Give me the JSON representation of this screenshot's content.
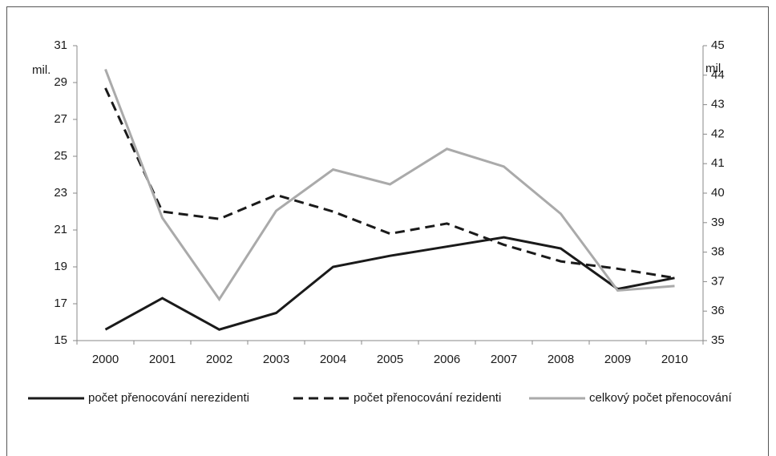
{
  "chart_data": {
    "type": "line",
    "y_label": "mil.",
    "y2_label": "mil.",
    "categories": [
      "2000",
      "2001",
      "2002",
      "2003",
      "2004",
      "2005",
      "2006",
      "2007",
      "2008",
      "2009",
      "2010"
    ],
    "series": [
      {
        "name": "počet přenocování nerezidenti",
        "color": "#1a1a1a",
        "dash": "solid",
        "axis": "y",
        "values": [
          15.6,
          17.3,
          15.6,
          16.5,
          19.0,
          19.6,
          20.1,
          20.6,
          20.0,
          17.8,
          18.4
        ]
      },
      {
        "name": "počet přenocování rezidenti",
        "color": "#1a1a1a",
        "dash": "dashed",
        "axis": "y",
        "values": [
          28.7,
          22.0,
          21.6,
          22.9,
          22.0,
          20.8,
          21.35,
          20.2,
          19.3,
          18.9,
          18.4
        ]
      },
      {
        "name": "celkový počet přenocování",
        "color": "#aaaaaa",
        "dash": "solid",
        "axis": "y2",
        "values": [
          44.2,
          39.16,
          36.4,
          39.4,
          40.8,
          40.3,
          41.5,
          40.9,
          39.3,
          36.7,
          36.85
        ]
      }
    ],
    "ylim": [
      15,
      31
    ],
    "yticks": [
      15,
      17,
      19,
      21,
      23,
      25,
      27,
      29,
      31
    ],
    "y2lim": [
      35,
      45
    ],
    "y2ticks": [
      35,
      36,
      37,
      38,
      39,
      40,
      41,
      42,
      43,
      44,
      45
    ],
    "legend": "bottom"
  }
}
